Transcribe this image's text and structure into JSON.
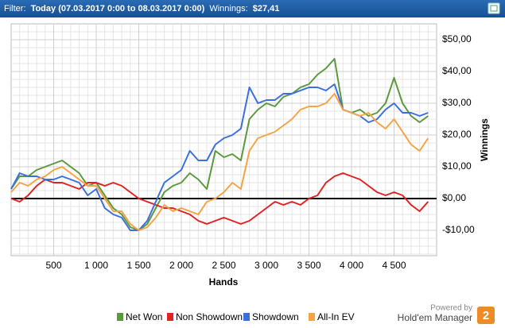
{
  "header": {
    "filter_label": "Filter:",
    "filter_value": "Today (07.03.2017 0:00 to 08.03.2017 0:00)",
    "winnings_label": "Winnings:",
    "winnings_value": "$27,41"
  },
  "chart_data": {
    "type": "line",
    "xlabel": "Hands",
    "ylabel": "Winnings",
    "grid": true,
    "minor_grid": true,
    "y_axis_side": "right",
    "legend": "bottom",
    "x": [
      0,
      100,
      200,
      300,
      400,
      500,
      600,
      700,
      800,
      900,
      1000,
      1100,
      1200,
      1300,
      1400,
      1500,
      1600,
      1700,
      1800,
      1900,
      2000,
      2100,
      2200,
      2300,
      2400,
      2500,
      2600,
      2700,
      2800,
      2900,
      3000,
      3100,
      3200,
      3300,
      3400,
      3500,
      3600,
      3700,
      3800,
      3900,
      4000,
      4100,
      4200,
      4300,
      4400,
      4500,
      4600,
      4700,
      4800,
      4900
    ],
    "xlim": [
      0,
      5000
    ],
    "xticks": [
      500,
      {
        "value": 1000,
        "label": "1 000"
      },
      {
        "value": 1500,
        "label": "1 500"
      },
      {
        "value": 2000,
        "label": "2 000"
      },
      {
        "value": 2500,
        "label": "2 500"
      },
      {
        "value": 3000,
        "label": "3 000"
      },
      {
        "value": 3500,
        "label": "3 500"
      },
      {
        "value": 4000,
        "label": "4 000"
      },
      {
        "value": 4500,
        "label": "4 500"
      }
    ],
    "ylim": [
      -18,
      55
    ],
    "yticks": [
      {
        "value": -10,
        "label": "-$10,00"
      },
      {
        "value": 0,
        "label": "$0,00"
      },
      {
        "value": 10,
        "label": "$10,00"
      },
      {
        "value": 20,
        "label": "$20,00"
      },
      {
        "value": 30,
        "label": "$30,00"
      },
      {
        "value": 40,
        "label": "$40,00"
      },
      {
        "value": 50,
        "label": "$50,00"
      }
    ],
    "series": [
      {
        "name": "Net Won",
        "color": "#5b9a3c",
        "values": [
          3,
          7,
          7,
          9,
          10,
          11,
          12,
          10,
          8,
          4,
          5,
          1,
          -3,
          -5,
          -9,
          -10,
          -8,
          -3,
          2,
          4,
          5,
          8,
          6,
          3,
          15,
          13,
          14,
          12,
          25,
          28,
          30,
          29,
          32,
          33,
          35,
          36,
          39,
          41,
          44,
          28,
          27,
          28,
          26,
          27,
          30,
          38,
          30,
          26,
          24,
          26
        ]
      },
      {
        "name": "Non Showdown",
        "color": "#e02222",
        "values": [
          0,
          -1,
          1,
          4,
          6,
          5,
          5,
          4,
          3,
          5,
          5,
          4,
          5,
          4,
          2,
          0,
          -1,
          -2,
          -3,
          -3,
          -4,
          -5,
          -7,
          -8,
          -7,
          -6,
          -7,
          -8,
          -7,
          -5,
          -3,
          -1,
          -2,
          -1,
          -2,
          0,
          1,
          5,
          7,
          8,
          7,
          6,
          4,
          2,
          1,
          2,
          1,
          -2,
          -4,
          -1
        ]
      },
      {
        "name": "Showdown",
        "color": "#3b6fe0",
        "values": [
          3,
          8,
          7,
          7,
          6,
          6,
          7,
          6,
          5,
          1,
          3,
          -3,
          -5,
          -6,
          -10,
          -10,
          -7,
          -1,
          5,
          7,
          9,
          15,
          12,
          12,
          17,
          19,
          20,
          22,
          35,
          30,
          31,
          31,
          33,
          33,
          34,
          35,
          35,
          34,
          36,
          28,
          27,
          26,
          24,
          25,
          28,
          30,
          27,
          27,
          26,
          27
        ]
      },
      {
        "name": "All-In EV",
        "color": "#f5a345",
        "values": [
          2,
          5,
          4,
          6,
          7,
          9,
          10,
          8,
          6,
          4,
          4,
          0,
          -4,
          -4,
          -8,
          -10,
          -9,
          -6,
          -2,
          -4,
          -3,
          -4,
          -5,
          -1,
          0,
          2,
          5,
          3,
          15,
          19,
          20,
          21,
          23,
          25,
          28,
          29,
          29,
          30,
          33,
          28,
          27,
          26,
          27,
          24,
          22,
          25,
          21,
          17,
          15,
          19
        ]
      }
    ]
  },
  "branding": {
    "powered_by": "Powered by",
    "product": "Hold'em Manager",
    "logo": "2"
  }
}
